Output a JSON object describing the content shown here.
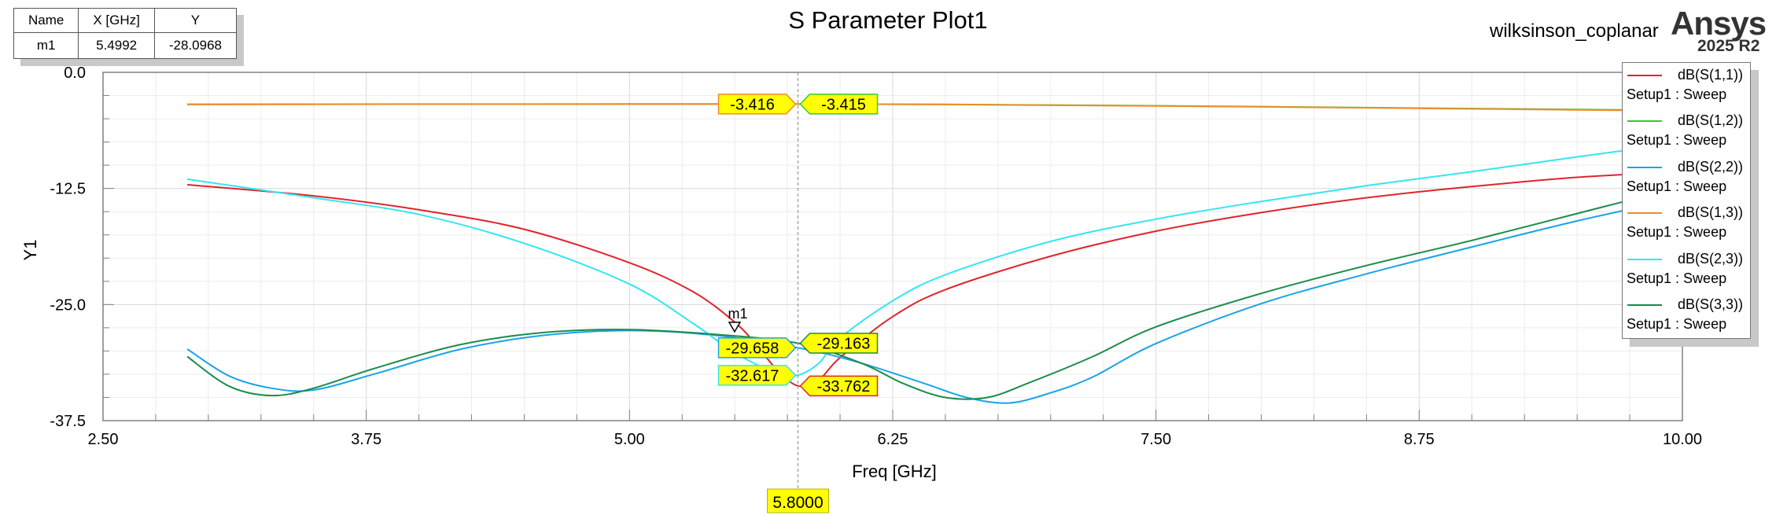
{
  "chart_data": {
    "type": "line",
    "title": "S Parameter Plot1",
    "xlabel": "Freq [GHz]",
    "ylabel": "Y1",
    "xlim": [
      2.5,
      10.0
    ],
    "ylim": [
      -37.5,
      0.0
    ],
    "xticks": [
      2.5,
      3.75,
      5.0,
      6.25,
      7.5,
      8.75,
      10.0
    ],
    "xtick_labels": [
      "2.50",
      "3.75",
      "5.00",
      "6.25",
      "7.50",
      "8.75",
      "10.00"
    ],
    "yticks": [
      0.0,
      -12.5,
      -25.0,
      -37.5
    ],
    "ytick_labels": [
      "0.0",
      "-12.5",
      "-25.0",
      "-37.5"
    ],
    "grid": true,
    "legend_position": "top-right",
    "project_name": "wilksinson_coplanar",
    "brand": "Ansys",
    "version": "2025 R2",
    "cursor": {
      "x": 5.8,
      "label": "5.8000"
    },
    "marker_table": {
      "headers": [
        "Name",
        "X [GHz]",
        "Y"
      ],
      "rows": [
        [
          "m1",
          "5.4992",
          "-28.0968"
        ]
      ]
    },
    "markers": [
      {
        "name": "m1",
        "x": 5.4992,
        "y": -28.0968
      }
    ],
    "cursor_labels": [
      {
        "value": "-3.416",
        "y": -3.416,
        "side": "left",
        "color": "#f08c2a"
      },
      {
        "value": "-3.415",
        "y": -3.415,
        "side": "right",
        "color": "#33cc33"
      },
      {
        "value": "-29.658",
        "y": -29.658,
        "side": "left",
        "color": "#1aa3e8"
      },
      {
        "value": "-29.163",
        "y": -29.163,
        "side": "right",
        "color": "#1a8c4a"
      },
      {
        "value": "-32.617",
        "y": -32.617,
        "side": "left",
        "color": "#33e6f0"
      },
      {
        "value": "-33.762",
        "y": -33.762,
        "side": "right",
        "color": "#e0242c"
      }
    ],
    "series": [
      {
        "name": "dB(S(1,1))",
        "setup": "Setup1 : Sweep",
        "color": "#e0242c",
        "x": [
          2.9,
          3.5,
          4.0,
          4.5,
          5.0,
          5.3,
          5.5,
          5.6,
          5.7,
          5.8,
          5.9,
          6.0,
          6.25,
          6.5,
          7.0,
          7.5,
          8.0,
          8.5,
          9.0,
          9.5,
          10.0
        ],
        "y": [
          -12.1,
          -13.3,
          -14.8,
          -16.9,
          -20.5,
          -23.6,
          -26.9,
          -29.3,
          -32.0,
          -33.76,
          -33.1,
          -30.7,
          -26.3,
          -23.4,
          -19.8,
          -17.1,
          -15.1,
          -13.5,
          -12.3,
          -11.3,
          -10.7
        ]
      },
      {
        "name": "dB(S(1,2))",
        "setup": "Setup1 : Sweep",
        "color": "#33cc33",
        "x": [
          2.9,
          4.0,
          5.0,
          5.8,
          6.5,
          7.5,
          8.5,
          9.5,
          10.0
        ],
        "y": [
          -3.44,
          -3.42,
          -3.415,
          -3.415,
          -3.45,
          -3.6,
          -3.8,
          -4.0,
          -4.1
        ]
      },
      {
        "name": "dB(S(2,2))",
        "setup": "Setup1 : Sweep",
        "color": "#1aa3e8",
        "x": [
          2.9,
          3.1,
          3.3,
          3.5,
          3.8,
          4.2,
          4.6,
          5.0,
          5.4,
          5.8,
          6.1,
          6.4,
          6.6,
          6.8,
          7.0,
          7.2,
          7.5,
          8.0,
          8.5,
          9.0,
          9.5,
          10.0
        ],
        "y": [
          -29.8,
          -32.7,
          -34.0,
          -34.2,
          -32.4,
          -29.8,
          -28.3,
          -27.8,
          -28.3,
          -29.65,
          -31.3,
          -33.5,
          -35.0,
          -35.6,
          -34.5,
          -32.8,
          -29.2,
          -24.9,
          -21.7,
          -18.8,
          -16.0,
          -13.5
        ]
      },
      {
        "name": "dB(S(1,3))",
        "setup": "Setup1 : Sweep",
        "color": "#f08c2a",
        "x": [
          2.9,
          4.0,
          5.0,
          5.8,
          6.5,
          7.5,
          8.5,
          9.5,
          10.0
        ],
        "y": [
          -3.46,
          -3.43,
          -3.416,
          -3.416,
          -3.46,
          -3.62,
          -3.82,
          -4.05,
          -4.15
        ]
      },
      {
        "name": "dB(S(2,3))",
        "setup": "Setup1 : Sweep",
        "color": "#33e6f0",
        "x": [
          2.9,
          3.5,
          4.0,
          4.5,
          5.0,
          5.3,
          5.5,
          5.7,
          5.8,
          5.9,
          6.0,
          6.25,
          6.5,
          7.0,
          7.5,
          8.0,
          8.5,
          9.0,
          9.5,
          10.0
        ],
        "y": [
          -11.5,
          -13.5,
          -15.3,
          -18.4,
          -22.8,
          -27.0,
          -30.2,
          -32.4,
          -32.6,
          -31.3,
          -28.6,
          -24.6,
          -21.8,
          -18.2,
          -15.8,
          -13.9,
          -12.2,
          -10.7,
          -9.1,
          -7.6
        ]
      },
      {
        "name": "dB(S(3,3))",
        "setup": "Setup1 : Sweep",
        "color": "#1a8c4a",
        "x": [
          2.9,
          3.1,
          3.3,
          3.5,
          3.8,
          4.2,
          4.6,
          5.0,
          5.4,
          5.8,
          6.1,
          6.3,
          6.5,
          6.7,
          6.9,
          7.2,
          7.5,
          8.0,
          8.5,
          9.0,
          9.5,
          10.0
        ],
        "y": [
          -30.6,
          -33.8,
          -34.8,
          -34.0,
          -31.8,
          -29.3,
          -28.0,
          -27.7,
          -28.2,
          -29.16,
          -31.3,
          -33.5,
          -35.0,
          -35.0,
          -33.4,
          -30.6,
          -27.4,
          -23.8,
          -20.8,
          -18.1,
          -15.2,
          -12.3
        ]
      }
    ]
  }
}
